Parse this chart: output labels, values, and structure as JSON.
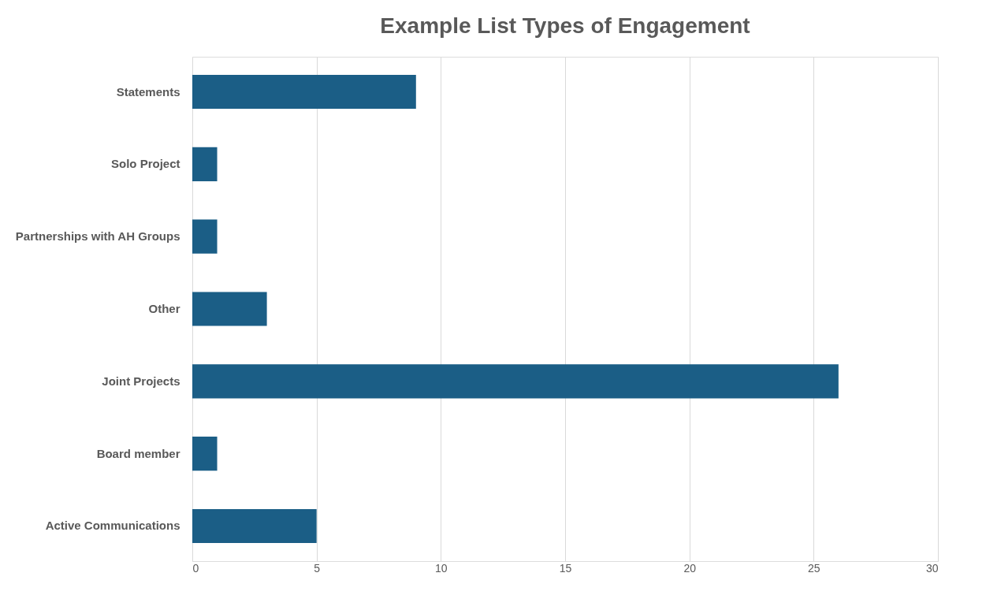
{
  "chart_data": {
    "type": "bar",
    "orientation": "horizontal",
    "title": "Example List Types of Engagement",
    "categories": [
      "Statements",
      "Solo Project",
      "Partnerships with AH Groups",
      "Other",
      "Joint Projects",
      "Board member",
      "Active Communications"
    ],
    "values": [
      9,
      1,
      1,
      3,
      26,
      1,
      5
    ],
    "color": "#1b5e86",
    "xlim": [
      0,
      30
    ],
    "xticks": [
      0,
      5,
      10,
      15,
      20,
      25,
      30
    ],
    "grid": "x"
  }
}
